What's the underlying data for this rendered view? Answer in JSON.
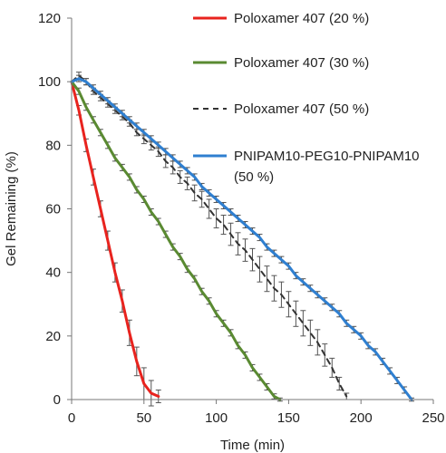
{
  "chart_data": {
    "type": "line",
    "title": "",
    "xlabel": "Time (min)",
    "ylabel": "Gel Remaining (%)",
    "xlim": [
      0,
      250
    ],
    "ylim": [
      0,
      120
    ],
    "xticks": [
      0,
      50,
      100,
      150,
      200,
      250
    ],
    "yticks": [
      0,
      20,
      40,
      60,
      80,
      100,
      120
    ],
    "grid": false,
    "legend_position": "top-right",
    "series": [
      {
        "name": "Poloxamer 407 (20 %)",
        "color": "#e8231e",
        "style": "solid",
        "x": [
          0,
          5,
          10,
          15,
          20,
          25,
          30,
          35,
          40,
          45,
          50,
          55,
          60
        ],
        "y": [
          100,
          91,
          80,
          70,
          60,
          50,
          40,
          31,
          21,
          12,
          5,
          2,
          1
        ],
        "err": [
          0,
          1.5,
          2,
          2.5,
          2.5,
          3,
          3,
          3.5,
          4,
          4.5,
          5,
          4,
          2
        ]
      },
      {
        "name": "Poloxamer 407 (30 %)",
        "color": "#5a8a32",
        "style": "solid",
        "x": [
          0,
          5,
          10,
          15,
          20,
          25,
          30,
          35,
          40,
          45,
          50,
          55,
          60,
          65,
          70,
          75,
          80,
          85,
          90,
          95,
          100,
          105,
          110,
          115,
          120,
          125,
          130,
          135,
          140,
          144
        ],
        "y": [
          100,
          97,
          92,
          88,
          84,
          80,
          76,
          73,
          70,
          66,
          63,
          59,
          56,
          52,
          48,
          45,
          41,
          38,
          34,
          31,
          27,
          24,
          21,
          17,
          14,
          10,
          7,
          4,
          1,
          0
        ],
        "err": [
          0,
          1,
          1,
          1,
          1,
          1,
          1,
          1,
          1,
          1,
          1,
          1,
          1,
          1,
          1,
          1,
          1,
          1,
          1,
          1,
          1,
          1,
          1,
          1,
          1,
          1,
          1,
          1,
          0.8,
          0.5
        ]
      },
      {
        "name": "Poloxamer 407 (50 %)",
        "color": "#333333",
        "style": "dashed",
        "x": [
          0,
          5,
          10,
          15,
          20,
          25,
          30,
          35,
          40,
          45,
          50,
          55,
          60,
          65,
          70,
          75,
          80,
          85,
          90,
          95,
          100,
          105,
          110,
          115,
          120,
          125,
          130,
          135,
          140,
          145,
          150,
          155,
          160,
          165,
          170,
          175,
          180,
          185,
          190
        ],
        "y": [
          100,
          102,
          100,
          97,
          95,
          93,
          91,
          89,
          87,
          84,
          82,
          80,
          78,
          75,
          73,
          70,
          68,
          65,
          63,
          60,
          57,
          55,
          52,
          49,
          47,
          44,
          41,
          38,
          35,
          33,
          30,
          27,
          24,
          21,
          18,
          14,
          10,
          5,
          1
        ],
        "err": [
          0,
          1,
          1,
          1,
          1,
          1,
          1,
          1,
          1,
          1,
          1.5,
          1.5,
          1.5,
          2,
          2,
          2,
          2,
          2.5,
          2.5,
          3,
          3,
          3,
          3.5,
          3.5,
          3.5,
          3.5,
          4,
          4,
          4,
          4,
          4,
          4,
          4,
          4,
          4,
          3.5,
          3,
          2,
          1
        ]
      },
      {
        "name": "PNIPAM10-PEG10-PNIPAM10 (50 %)",
        "color": "#2f7fd0",
        "style": "solid",
        "x": [
          0,
          5,
          10,
          15,
          20,
          25,
          30,
          35,
          40,
          45,
          50,
          55,
          60,
          65,
          70,
          75,
          80,
          85,
          90,
          95,
          100,
          105,
          110,
          115,
          120,
          125,
          130,
          135,
          140,
          145,
          150,
          155,
          160,
          165,
          170,
          175,
          180,
          185,
          190,
          195,
          200,
          205,
          210,
          215,
          220,
          225,
          230,
          235
        ],
        "y": [
          100,
          101,
          100,
          98,
          96,
          94,
          92,
          90,
          88,
          86,
          84,
          82,
          80,
          78,
          76,
          74,
          72,
          70,
          67,
          65,
          63,
          61,
          59,
          57,
          55,
          53,
          51,
          48,
          46,
          44,
          42,
          39,
          37,
          35,
          33,
          31,
          29,
          27,
          24,
          22,
          20,
          17,
          15,
          12,
          9,
          6,
          3,
          0
        ],
        "err": [
          0,
          1,
          1,
          1,
          1,
          1,
          1,
          1,
          1,
          1,
          1,
          1,
          1,
          1,
          1,
          1,
          1,
          1,
          1,
          1,
          1,
          1,
          1,
          1,
          1,
          1,
          1,
          1,
          1,
          1,
          1,
          1,
          1,
          1,
          1,
          1,
          1,
          1,
          1,
          1,
          1,
          1,
          1,
          1,
          1,
          1,
          1,
          0.5
        ]
      }
    ],
    "legend": [
      {
        "label_lines": [
          "Poloxamer 407 (20 %)"
        ]
      },
      {
        "label_lines": [
          "Poloxamer 407 (30 %)"
        ]
      },
      {
        "label_lines": [
          "Poloxamer 407 (50 %)"
        ]
      },
      {
        "label_lines": [
          "PNIPAM10-PEG10-PNIPAM10",
          "(50 %)"
        ]
      }
    ]
  }
}
